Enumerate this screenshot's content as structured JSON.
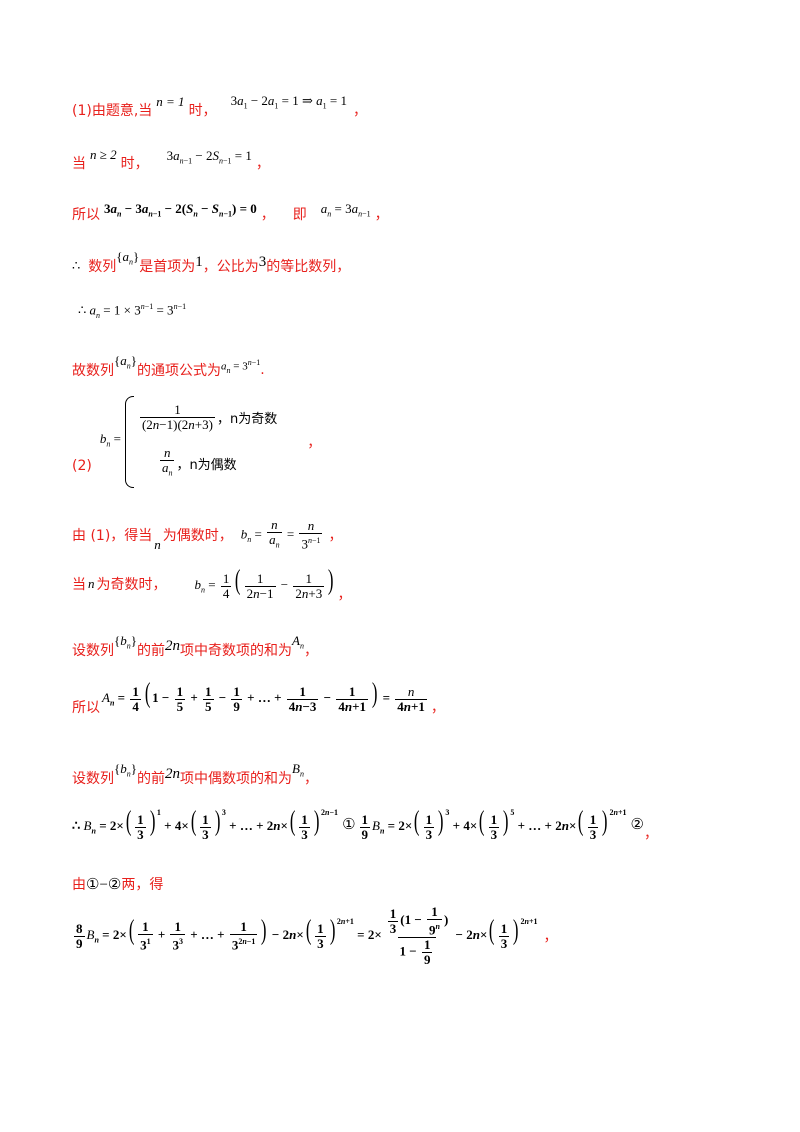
{
  "l1": {
    "a": "(1)由题意,当",
    "n1": "n = 1",
    "b": "时，",
    "eq": "3a₁ − 2a₁ = 1 ⇒ a₁ = 1",
    "c": "，"
  },
  "l2": {
    "a": "当",
    "n2": "n ≥ 2",
    "b": "时，",
    "c": "，"
  },
  "l3": {
    "a": "所以",
    "c": "，",
    "d": "即",
    "e": "，"
  },
  "l4": {
    "therefore": "∴",
    "a": "数列",
    "b": "是首项为",
    "one": "1",
    "c": "，公比为",
    "three": "3",
    "d": "的等比数列，"
  },
  "l6": {
    "a": "故数列",
    "b": "的通项公式为",
    "c": "."
  },
  "l7": {
    "label": "(2)",
    "odd": "，n为奇数",
    "even": "，n为偶数",
    "c": "，"
  },
  "l8": {
    "a": "由 (1)，得当",
    "b": "为偶数时，",
    "c": "，"
  },
  "l9": {
    "a": "当",
    "n": "n",
    "b": "为奇数时，",
    "c": "，"
  },
  "l10": {
    "a": "设数列",
    "b": "的前",
    "twon": "2n",
    "c": "项中奇数项的和为",
    "d": "，"
  },
  "l11": {
    "a": "所以",
    "c": "，"
  },
  "l12": {
    "a": "设数列",
    "b": "的前",
    "twon": "2n",
    "c": "项中偶数项的和为",
    "d": "，"
  },
  "l13": {
    "c1": "①",
    "c2": "②",
    "d": "，"
  },
  "l14": {
    "a": "由",
    "b": "①−②",
    "c": "两，得"
  },
  "l15": {
    "c": "，"
  }
}
